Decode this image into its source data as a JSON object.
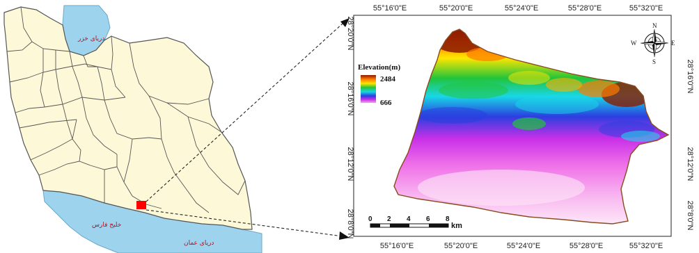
{
  "iran_map": {
    "caspian_label": "دریای خزر",
    "persian_gulf_label": "خلیج فارس",
    "oman_sea_label": "دریای عمان",
    "colors": {
      "land": "#fdf8d8",
      "border": "#555555",
      "water": "#9ed3ee",
      "marker": "#ff0000"
    }
  },
  "study_map": {
    "legend": {
      "title": "Elevation(m)",
      "max": "2484",
      "min": "666"
    },
    "top_ticks": [
      "55°16'0\"E",
      "55°20'0\"E",
      "55°24'0\"E",
      "55°28'0\"E",
      "55°32'0\"E"
    ],
    "bottom_ticks": [
      "55°16'0\"E",
      "55°20'0\"E",
      "55°24'0\"E",
      "55°28'0\"E",
      "55°32'0\"E"
    ],
    "left_ticks": [
      "28°20'0\"N",
      "28°16'0\"N",
      "28°12'0\"N",
      "28°8'0\"N"
    ],
    "right_ticks": [
      "28°16'0\"N",
      "28°12'0\"N",
      "28°8'0\"N"
    ],
    "scale_bar": {
      "labels": [
        "0",
        "2",
        "4",
        "6",
        "8"
      ],
      "unit": "km"
    },
    "compass": {
      "n": "N",
      "s": "S",
      "e": "E",
      "w": "W"
    },
    "colors": {
      "high": "#8b1a00",
      "orange": "#ff7a00",
      "yellow": "#ffe600",
      "green": "#22c43a",
      "cyan": "#19d7e6",
      "blue": "#2a3fe0",
      "magenta": "#e030e8",
      "pink": "#f6a0ec",
      "low": "#fde6f7",
      "outline": "#8a4a1f"
    }
  }
}
